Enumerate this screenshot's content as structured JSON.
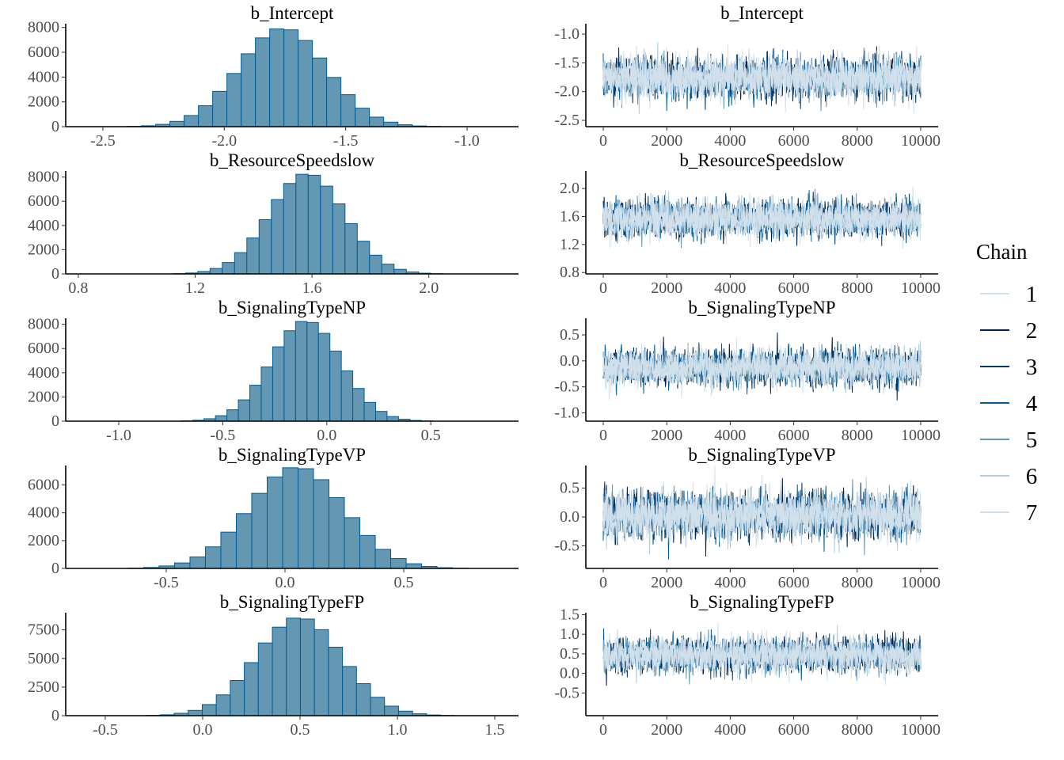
{
  "chart_data": {
    "type": "bar",
    "description_kind": "mcmc_hist_and_trace",
    "legend": {
      "title": "Chain",
      "position": "right",
      "chains": [
        "1",
        "2",
        "3",
        "4",
        "5",
        "6",
        "7"
      ],
      "colors": [
        "#d1e1ec",
        "#011f4b",
        "#03396c",
        "#005b96",
        "#6497b1",
        "#b3cde0",
        "#d1e1ec"
      ]
    },
    "hist_fill": "#6497b1",
    "hist_stroke": "#005b96",
    "panels": [
      {
        "parameter": "b_Intercept",
        "hist": {
          "xlim": [
            -2.653,
            -0.788
          ],
          "ylim": [
            0,
            8300
          ],
          "xticks": [
            -2.5,
            -2.0,
            -1.5,
            -1.0
          ],
          "xtick_labels": [
            "-2.5",
            "-2.0",
            "-1.5",
            "-1.0"
          ],
          "yticks": [
            0,
            2000,
            4000,
            6000,
            8000
          ],
          "ytick_labels": [
            "0",
            "2000",
            "4000",
            "6000",
            "8000"
          ],
          "bin_start": -2.4,
          "bin_width": 0.0587,
          "counts": [
            25,
            72,
            187,
            428,
            900,
            1690,
            2850,
            4290,
            5880,
            7160,
            7880,
            7810,
            6950,
            5540,
            3970,
            2580,
            1490,
            770,
            365,
            153,
            59,
            20
          ]
        },
        "trace": {
          "ylim": [
            -2.61,
            -0.82
          ],
          "yticks": [
            -1.0,
            -1.5,
            -2.0,
            -2.5
          ],
          "ytick_labels": [
            "-1.0",
            "-1.5",
            "-2.0",
            "-2.5"
          ],
          "mean": -1.76,
          "sd": 0.18
        }
      },
      {
        "parameter": "b_ResourceSpeedslow",
        "hist": {
          "xlim": [
            0.757,
            2.307
          ],
          "ylim": [
            0,
            8500
          ],
          "xticks": [
            0.8,
            1.2,
            1.6,
            2.0
          ],
          "xtick_labels": [
            "0.8",
            "1.2",
            "1.6",
            "2.0"
          ],
          "yticks": [
            0,
            2000,
            4000,
            6000,
            8000
          ],
          "ytick_labels": [
            "0",
            "2000",
            "4000",
            "6000",
            "8000"
          ],
          "bin_start": 1.125,
          "bin_width": 0.042,
          "counts": [
            25,
            75,
            200,
            450,
            940,
            1760,
            2970,
            4480,
            6140,
            7470,
            8230,
            8150,
            7250,
            5790,
            4150,
            2700,
            1550,
            805,
            380,
            160,
            60,
            20
          ]
        },
        "trace": {
          "ylim": [
            0.78,
            2.25
          ],
          "yticks": [
            2.0,
            1.6,
            1.2,
            0.8
          ],
          "ytick_labels": [
            "2.0",
            "1.6",
            "1.2",
            "0.8"
          ],
          "mean": 1.57,
          "sd": 0.13
        }
      },
      {
        "parameter": "b_SignalingTypeNP",
        "hist": {
          "xlim": [
            -1.255,
            0.922
          ],
          "ylim": [
            0,
            8500
          ],
          "xticks": [
            -1.0,
            -0.5,
            0.0,
            0.5
          ],
          "xtick_labels": [
            "-1.0",
            "-0.5",
            "0.0",
            "0.5"
          ],
          "yticks": [
            0,
            2000,
            4000,
            6000,
            8000
          ],
          "ytick_labels": [
            "0",
            "2000",
            "4000",
            "6000",
            "8000"
          ],
          "bin_start": -0.7,
          "bin_width": 0.055,
          "counts": [
            25,
            75,
            200,
            450,
            940,
            1760,
            2970,
            4480,
            6140,
            7470,
            8230,
            8150,
            7250,
            5790,
            4150,
            2700,
            1550,
            805,
            380,
            160,
            60,
            20
          ]
        },
        "trace": {
          "ylim": [
            -1.16,
            0.82
          ],
          "yticks": [
            0.5,
            0.0,
            -0.5,
            -1.0
          ],
          "ytick_labels": [
            "0.5",
            "0.0",
            "-0.5",
            "-1.0"
          ],
          "mean": -0.12,
          "sd": 0.17
        }
      },
      {
        "parameter": "b_SignalingTypeVP",
        "hist": {
          "xlim": [
            -0.923,
            0.983
          ],
          "ylim": [
            0,
            7400
          ],
          "xticks": [
            -0.5,
            0.0,
            0.5
          ],
          "xtick_labels": [
            "-0.5",
            "0.0",
            "0.5"
          ],
          "yticks": [
            0,
            2000,
            4000,
            6000
          ],
          "ytick_labels": [
            "0",
            "2000",
            "4000",
            "6000"
          ],
          "bin_start": -0.66,
          "bin_width": 0.065,
          "counts": [
            22,
            66,
            175,
            394,
            825,
            1550,
            2610,
            3940,
            5400,
            6570,
            7240,
            7170,
            6380,
            5090,
            3650,
            2370,
            1370,
            710,
            335,
            140,
            50,
            18
          ]
        },
        "trace": {
          "ylim": [
            -0.89,
            0.89
          ],
          "yticks": [
            0.5,
            0.0,
            -0.5
          ],
          "ytick_labels": [
            "0.5",
            "0.0",
            "-0.5"
          ],
          "mean": 0.03,
          "sd": 0.2
        }
      },
      {
        "parameter": "b_SignalingTypeFP",
        "hist": {
          "xlim": [
            -0.703,
            1.622
          ],
          "ylim": [
            0,
            9000
          ],
          "xticks": [
            -0.5,
            0.0,
            0.5,
            1.0,
            1.5
          ],
          "xtick_labels": [
            "-0.5",
            "0.0",
            "0.5",
            "1.0",
            "1.5"
          ],
          "yticks": [
            0,
            2500,
            5000,
            7500
          ],
          "ytick_labels": [
            "0",
            "2500",
            "5000",
            "7500"
          ],
          "bin_start": -0.29,
          "bin_width": 0.072,
          "counts": [
            26,
            77,
            206,
            464,
            972,
            1820,
            3080,
            4640,
            6360,
            7740,
            8530,
            8450,
            7520,
            5990,
            4300,
            2800,
            1610,
            834,
            396,
            163,
            60,
            22
          ]
        },
        "trace": {
          "ylim": [
            -1.08,
            1.55
          ],
          "yticks": [
            1.5,
            1.0,
            0.5,
            0.0,
            -0.5
          ],
          "ytick_labels": [
            "1.5",
            "1.0",
            "0.5",
            "0.0",
            "-0.5"
          ],
          "mean": 0.47,
          "sd": 0.22
        }
      }
    ],
    "trace_x": {
      "xlim": [
        -550,
        10550
      ],
      "xticks": [
        0,
        2000,
        4000,
        6000,
        8000,
        10000
      ],
      "xtick_labels": [
        "0",
        "2000",
        "4000",
        "6000",
        "8000",
        "10000"
      ],
      "iterations": 10000
    }
  }
}
